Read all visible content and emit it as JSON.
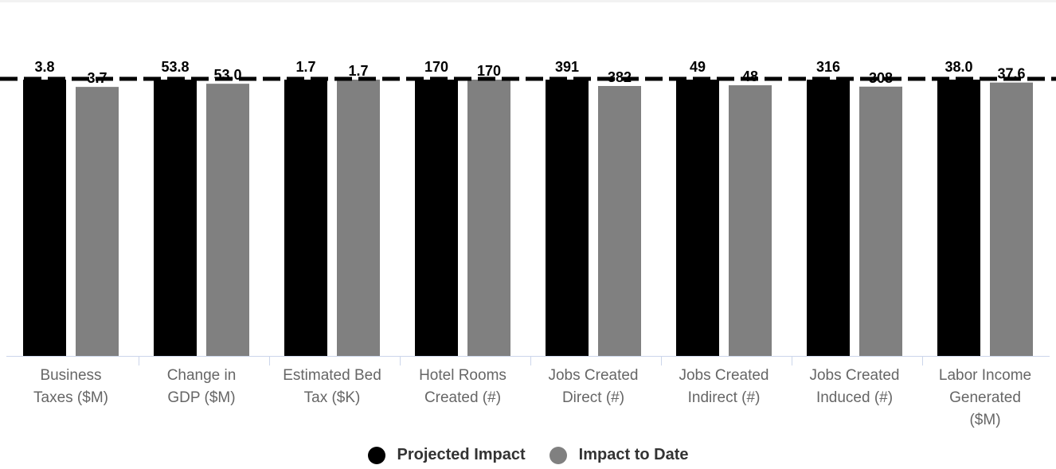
{
  "colors": {
    "projected": "#000000",
    "to_date": "#808080",
    "axis": "#ccd6eb",
    "label_text": "#666666",
    "legend_text": "#333333"
  },
  "legend": {
    "projected": "Projected Impact",
    "to_date": "Impact to Date"
  },
  "chart_data": {
    "type": "bar",
    "categories": [
      "Business Taxes ($M)",
      "Change in GDP ($M)",
      "Estimated Bed Tax ($K)",
      "Hotel Rooms Created (#)",
      "Jobs Created Direct (#)",
      "Jobs Created Indirect (#)",
      "Jobs Created Induced (#)",
      "Labor Income Generated ($M)"
    ],
    "category_lines": [
      [
        "Business",
        "Taxes ($M)"
      ],
      [
        "Change in",
        "GDP ($M)"
      ],
      [
        "Estimated Bed",
        "Tax ($K)"
      ],
      [
        "Hotel Rooms",
        "Created (#)"
      ],
      [
        "Jobs Created",
        "Direct (#)"
      ],
      [
        "Jobs Created",
        "Indirect (#)"
      ],
      [
        "Jobs Created",
        "Induced (#)"
      ],
      [
        "Labor Income",
        "Generated",
        "($M)"
      ]
    ],
    "series": [
      {
        "name": "Projected Impact",
        "values": [
          3.8,
          53.8,
          1.7,
          170,
          391,
          49,
          316,
          38.0
        ],
        "labels": [
          "3.8",
          "53.8",
          "1.7",
          "170",
          "391",
          "49",
          "316",
          "38.0"
        ]
      },
      {
        "name": "Impact to Date",
        "values": [
          3.7,
          53.0,
          1.7,
          170,
          382,
          48,
          308,
          37.6
        ],
        "labels": [
          "3.7",
          "53.0",
          "1.7",
          "170",
          "382",
          "48",
          "308",
          "37.6"
        ]
      }
    ],
    "reference_line": "projected value (100%) shown as dashed line",
    "normalized": "each category scaled to its projected value",
    "grid": false,
    "legend_position": "bottom-center"
  }
}
